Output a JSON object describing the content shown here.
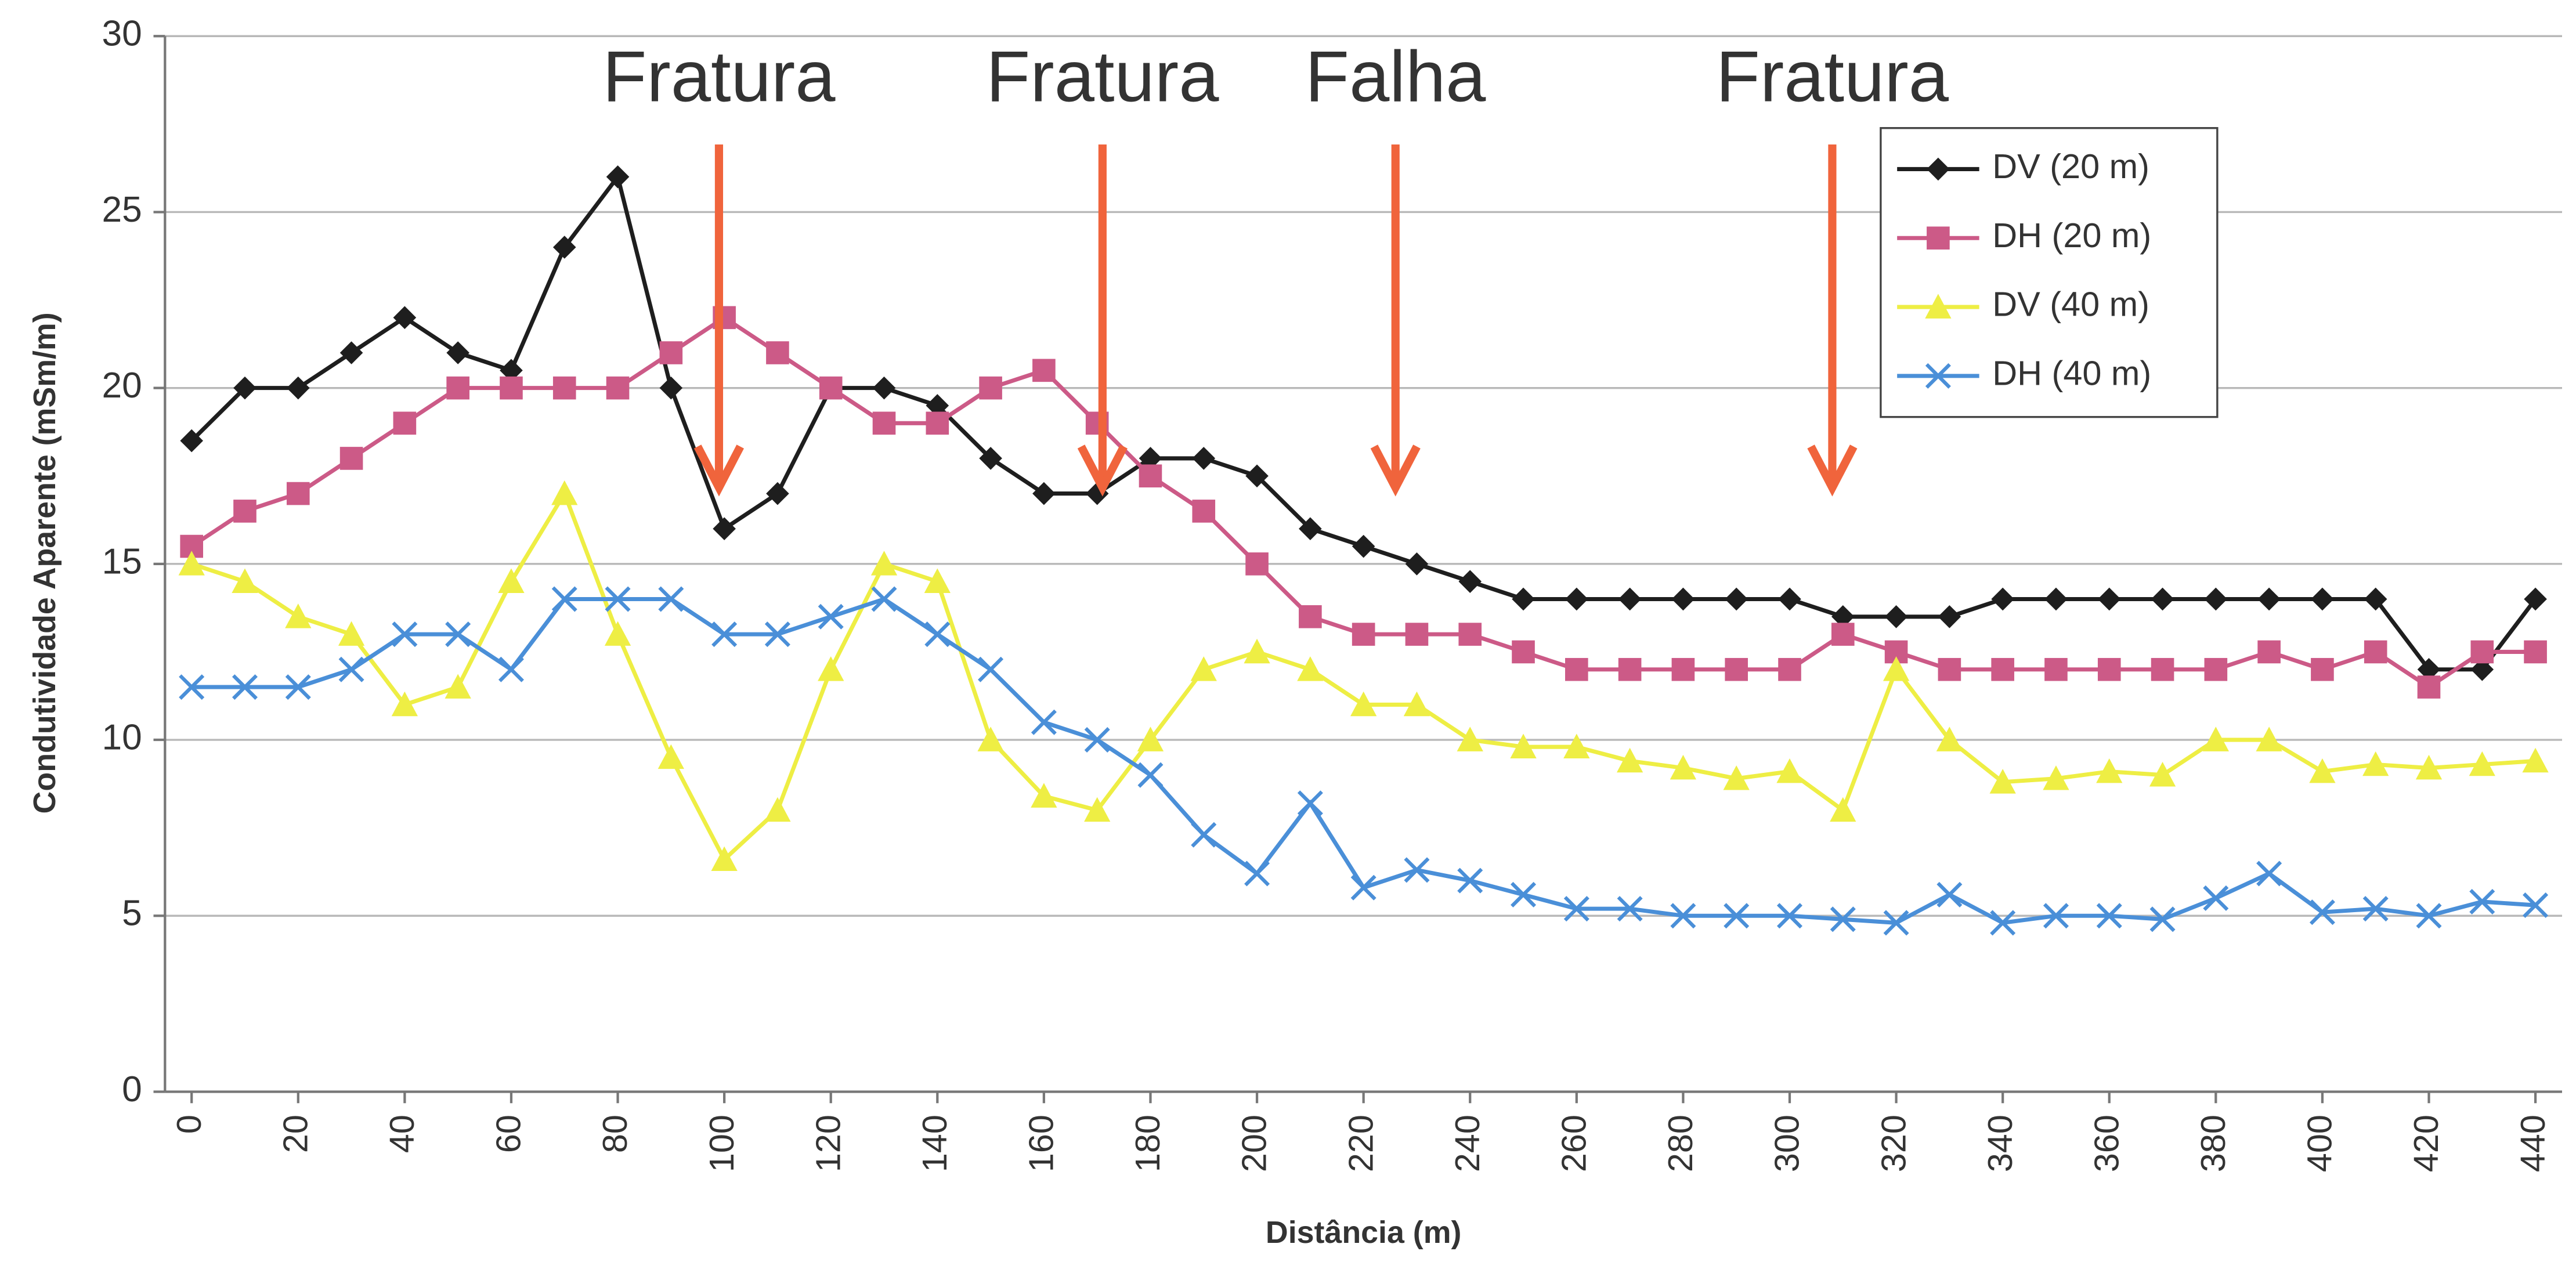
{
  "chart_data": {
    "type": "line",
    "y_label": "Condutividade Aparente (mSm/m)",
    "x_label": "Distância (m)",
    "x": [
      0,
      10,
      20,
      30,
      40,
      50,
      60,
      70,
      80,
      90,
      100,
      110,
      120,
      130,
      140,
      150,
      160,
      170,
      180,
      190,
      200,
      210,
      220,
      230,
      240,
      250,
      260,
      270,
      280,
      290,
      300,
      310,
      320,
      330,
      340,
      350,
      360,
      370,
      380,
      390,
      400,
      410,
      420,
      430,
      440
    ],
    "xlim": [
      -5,
      445
    ],
    "xticks": [
      0,
      20,
      40,
      60,
      80,
      100,
      120,
      140,
      160,
      180,
      200,
      220,
      240,
      260,
      280,
      300,
      320,
      340,
      360,
      380,
      400,
      420,
      440
    ],
    "ylim": [
      0,
      30
    ],
    "yticks": [
      0,
      5,
      10,
      15,
      20,
      25,
      30
    ],
    "grid": true,
    "legend": "upper right",
    "series": [
      {
        "name": "DV (20 m)",
        "color": "#1e1e1e",
        "marker": "diamond",
        "values": [
          18.5,
          20,
          20,
          21,
          22,
          21,
          20.5,
          24,
          26,
          20,
          16,
          17,
          20,
          20,
          19.5,
          18,
          17,
          17,
          18,
          18,
          17.5,
          16,
          15.5,
          15,
          14.5,
          14,
          14,
          14,
          14,
          14,
          14,
          13.5,
          13.5,
          13.5,
          14,
          14,
          14,
          14,
          14,
          14,
          14,
          14,
          12,
          12,
          14
        ]
      },
      {
        "name": "DH (20 m)",
        "color": "#cc5a87",
        "marker": "square",
        "values": [
          15.5,
          16.5,
          17,
          18,
          19,
          20,
          20,
          20,
          20,
          21,
          22,
          21,
          20,
          19,
          19,
          20,
          20.5,
          19,
          17.5,
          16.5,
          15,
          13.5,
          13,
          13,
          13,
          12.5,
          12,
          12,
          12,
          12,
          12,
          13,
          12.5,
          12,
          12,
          12,
          12,
          12,
          12,
          12.5,
          12,
          12.5,
          11.5,
          12.5,
          12.5
        ]
      },
      {
        "name": "DV (40 m)",
        "color": "#eeee44",
        "marker": "triangle",
        "values": [
          15,
          14.5,
          13.5,
          13,
          11,
          11.5,
          14.5,
          17,
          13,
          9.5,
          6.6,
          8,
          12,
          15,
          14.5,
          10,
          8.4,
          8,
          10,
          12,
          12.5,
          12,
          11,
          11,
          10,
          9.8,
          9.8,
          9.4,
          9.2,
          8.9,
          9.1,
          8,
          12,
          10,
          8.8,
          8.9,
          9.1,
          9,
          10,
          10,
          9.1,
          9.3,
          9.2,
          9.3,
          9.4
        ]
      },
      {
        "name": "DH (40 m)",
        "color": "#4a8fd8",
        "marker": "x",
        "values": [
          11.5,
          11.5,
          11.5,
          12,
          13,
          13,
          12,
          14,
          14,
          14,
          13,
          13,
          13.5,
          14,
          13,
          12,
          10.5,
          10,
          9,
          7.3,
          6.2,
          8.2,
          5.8,
          6.3,
          6,
          5.6,
          5.2,
          5.2,
          5,
          5,
          5,
          4.9,
          4.8,
          5.6,
          4.8,
          5,
          5,
          4.9,
          5.5,
          6.2,
          5.1,
          5.2,
          5,
          5.4,
          5.3
        ]
      }
    ],
    "annotations": [
      {
        "text": "Fratura",
        "x": 99,
        "color": "#f0643c"
      },
      {
        "text": "Fratura",
        "x": 171,
        "color": "#f0643c"
      },
      {
        "text": "Falha",
        "x": 226,
        "color": "#f0643c"
      },
      {
        "text": "Fratura",
        "x": 308,
        "color": "#f0643c"
      }
    ]
  }
}
